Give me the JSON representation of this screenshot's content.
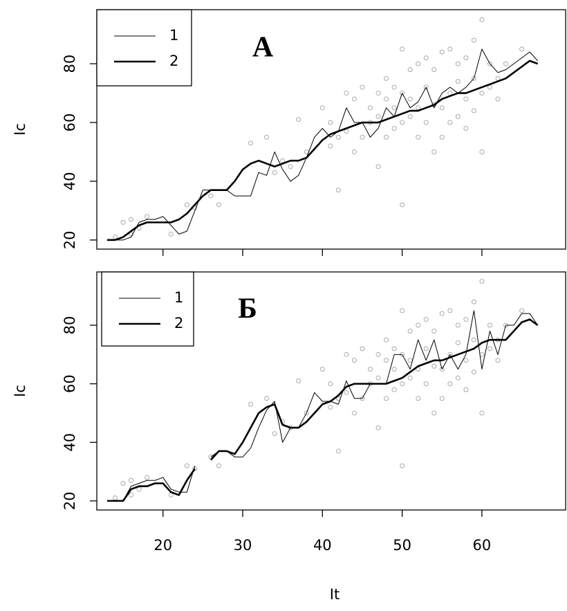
{
  "chart_data": [
    {
      "type": "line",
      "title": "А",
      "ylabel": "Ic",
      "x": [
        13,
        14,
        15,
        16,
        17,
        18,
        19,
        20,
        21,
        22,
        23,
        24,
        25,
        26,
        27,
        28,
        29,
        30,
        31,
        32,
        33,
        34,
        35,
        36,
        37,
        38,
        39,
        40,
        41,
        42,
        43,
        44,
        45,
        46,
        47,
        48,
        49,
        50,
        51,
        52,
        53,
        54,
        55,
        56,
        57,
        58,
        59,
        60,
        61,
        62,
        63,
        64,
        65,
        66,
        67
      ],
      "series": [
        {
          "name": "1",
          "color": "#000000",
          "linewidth": 1,
          "values": [
            20,
            20,
            20,
            21,
            26,
            27,
            27,
            28,
            25,
            22,
            23,
            30,
            37,
            37,
            37,
            37,
            35,
            35,
            35,
            43,
            42,
            50,
            44,
            40,
            42,
            48,
            55,
            58,
            55,
            57,
            65,
            60,
            60,
            55,
            58,
            65,
            62,
            70,
            65,
            67,
            72,
            65,
            70,
            72,
            70,
            72,
            75,
            85,
            80,
            77,
            78,
            80,
            82,
            84,
            81
          ]
        },
        {
          "name": "2",
          "color": "#000000",
          "linewidth": 2.6,
          "values": [
            20,
            20,
            21,
            23,
            25,
            26,
            26,
            26,
            26,
            27,
            29,
            32,
            35,
            37,
            37,
            37,
            40,
            44,
            46,
            47,
            46,
            45,
            46,
            47,
            47,
            48,
            51,
            54,
            56,
            57,
            58,
            59,
            60,
            60,
            60,
            61,
            62,
            63,
            64,
            64,
            65,
            66,
            68,
            69,
            70,
            70,
            71,
            72,
            73,
            74,
            75,
            77,
            79,
            81,
            80
          ]
        }
      ],
      "points": {
        "color": "#a8a8a8",
        "x": [
          14,
          15,
          16,
          16,
          17,
          18,
          21,
          23,
          24,
          26,
          27,
          31,
          33,
          34,
          35,
          36,
          37,
          38,
          40,
          41,
          41,
          42,
          42,
          43,
          43,
          44,
          44,
          45,
          45,
          46,
          46,
          47,
          47,
          47,
          48,
          48,
          48,
          49,
          49,
          49,
          50,
          50,
          50,
          50,
          51,
          51,
          51,
          52,
          52,
          52,
          53,
          53,
          53,
          54,
          54,
          54,
          55,
          55,
          55,
          56,
          56,
          56,
          57,
          57,
          57,
          58,
          58,
          58,
          59,
          59,
          59,
          60,
          60,
          60,
          61,
          61,
          62,
          62,
          63,
          65
        ],
        "y": [
          21,
          26,
          27,
          22,
          24,
          28,
          22,
          32,
          31,
          35,
          32,
          53,
          55,
          43,
          47,
          45,
          61,
          50,
          65,
          52,
          60,
          37,
          55,
          57,
          70,
          50,
          68,
          55,
          72,
          60,
          65,
          45,
          62,
          70,
          55,
          68,
          75,
          58,
          65,
          72,
          32,
          60,
          70,
          85,
          62,
          68,
          78,
          55,
          65,
          80,
          60,
          72,
          82,
          50,
          66,
          78,
          55,
          65,
          84,
          60,
          70,
          85,
          62,
          74,
          80,
          58,
          68,
          82,
          64,
          75,
          88,
          50,
          70,
          95,
          72,
          80,
          75,
          68,
          80,
          85
        ]
      },
      "xlim": [
        11.7,
        70.5
      ],
      "ylim": [
        16.9,
        98.4
      ],
      "xticks": [
        20,
        30,
        40,
        50,
        60
      ],
      "yticks": [
        20,
        40,
        60,
        80
      ],
      "legend": "topleft"
    },
    {
      "type": "line",
      "title": "Б",
      "ylabel": "Ic",
      "xlabel": "It",
      "x": [
        13,
        14,
        15,
        16,
        17,
        18,
        19,
        20,
        21,
        22,
        23,
        24,
        25,
        26,
        27,
        28,
        29,
        30,
        31,
        32,
        33,
        34,
        35,
        36,
        37,
        38,
        39,
        40,
        41,
        42,
        43,
        44,
        45,
        46,
        47,
        48,
        49,
        50,
        51,
        52,
        53,
        54,
        55,
        56,
        57,
        58,
        59,
        60,
        61,
        62,
        63,
        64,
        65,
        66,
        67
      ],
      "series": [
        {
          "name": "1",
          "color": "#000000",
          "linewidth": 1,
          "values": [
            20,
            20,
            20,
            25,
            26,
            27,
            27,
            28,
            24,
            23,
            23,
            32,
            null,
            35,
            37,
            37,
            35,
            35,
            38,
            45,
            51,
            54,
            40,
            45,
            45,
            50,
            57,
            54,
            54,
            53,
            61,
            55,
            55,
            60,
            60,
            60,
            70,
            70,
            65,
            75,
            68,
            75,
            65,
            70,
            65,
            70,
            85,
            65,
            78,
            70,
            80,
            80,
            84,
            84,
            80
          ]
        },
        {
          "name": "2",
          "color": "#000000",
          "linewidth": 2.6,
          "values": [
            20,
            20,
            20,
            24,
            25,
            25,
            26,
            26,
            23,
            22,
            27,
            31,
            null,
            34,
            37,
            37,
            36,
            40,
            45,
            50,
            52,
            53,
            46,
            45,
            45,
            47,
            50,
            53,
            54,
            56,
            59,
            60,
            60,
            60,
            60,
            60,
            61,
            62,
            64,
            66,
            67,
            68,
            68,
            69,
            70,
            71,
            72,
            74,
            75,
            75,
            75,
            78,
            81,
            82,
            80
          ]
        }
      ],
      "points": {
        "color": "#a8a8a8",
        "x": [
          14,
          15,
          16,
          16,
          17,
          18,
          21,
          23,
          24,
          26,
          27,
          31,
          33,
          34,
          35,
          36,
          37,
          38,
          40,
          41,
          41,
          42,
          42,
          43,
          43,
          44,
          44,
          45,
          45,
          46,
          46,
          47,
          47,
          47,
          48,
          48,
          48,
          49,
          49,
          49,
          50,
          50,
          50,
          50,
          51,
          51,
          51,
          52,
          52,
          52,
          53,
          53,
          53,
          54,
          54,
          54,
          55,
          55,
          55,
          56,
          56,
          56,
          57,
          57,
          57,
          58,
          58,
          58,
          59,
          59,
          59,
          60,
          60,
          60,
          61,
          61,
          62,
          62,
          63,
          65
        ],
        "y": [
          21,
          26,
          27,
          22,
          24,
          28,
          22,
          32,
          31,
          35,
          32,
          53,
          55,
          43,
          47,
          45,
          61,
          50,
          65,
          52,
          60,
          37,
          55,
          57,
          70,
          50,
          68,
          55,
          72,
          60,
          65,
          45,
          62,
          70,
          55,
          68,
          75,
          58,
          65,
          72,
          32,
          60,
          70,
          85,
          62,
          68,
          78,
          55,
          65,
          80,
          60,
          72,
          82,
          50,
          66,
          78,
          55,
          65,
          84,
          60,
          70,
          85,
          62,
          74,
          80,
          58,
          68,
          82,
          64,
          75,
          88,
          50,
          70,
          95,
          72,
          80,
          75,
          68,
          80,
          85
        ]
      },
      "xlim": [
        11.7,
        70.5
      ],
      "ylim": [
        16.9,
        98.2
      ],
      "xticks": [
        20,
        30,
        40,
        50,
        60
      ],
      "yticks": [
        20,
        40,
        60,
        80
      ],
      "legend": "topleft"
    }
  ]
}
